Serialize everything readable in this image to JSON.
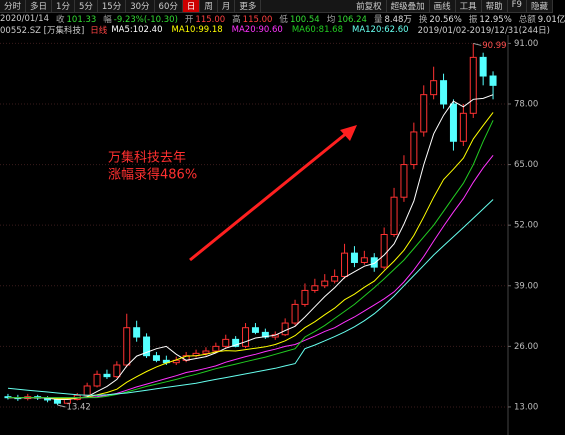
{
  "toolbar": {
    "left": [
      "分时",
      "多日",
      "1分",
      "5分",
      "15分",
      "30分",
      "60分",
      "日",
      "周",
      "月",
      "更多"
    ],
    "right": [
      "前复权",
      "超级叠加",
      "画线",
      "工具",
      "帮助",
      "F9",
      "隐藏"
    ]
  },
  "info_bar": {
    "date": "2020/01/14",
    "items": [
      {
        "label": "收",
        "value": "101.33",
        "color": "#33dd33"
      },
      {
        "label": "幅",
        "value": "-9.23%(-10.30)",
        "color": "#33dd33"
      },
      {
        "label": "开",
        "value": "115.00",
        "color": "#ff4040"
      },
      {
        "label": "高",
        "value": "115.00",
        "color": "#ff4040"
      },
      {
        "label": "低",
        "value": "100.54",
        "color": "#33dd33"
      },
      {
        "label": "均",
        "value": "106.24",
        "color": "#33dd33"
      },
      {
        "label": "量",
        "value": "8.48万",
        "color": "#dddddd"
      },
      {
        "label": "换",
        "value": "20.56%",
        "color": "#dddddd"
      },
      {
        "label": "振",
        "value": "12.95%",
        "color": "#dddddd"
      },
      {
        "label": "总额",
        "value": "9.01亿",
        "color": "#dddddd"
      }
    ]
  },
  "chart_data": {
    "type": "candlestick",
    "code": "00552.SZ [万集科技]",
    "period": "日线",
    "range": "2019/01/02-2019/12/31(244日)",
    "annotations": [
      "万集科技去年",
      "涨幅录得486%"
    ],
    "up_color": "#ff3232",
    "down_color": "#54ffff",
    "grid": true,
    "ylim": [
      10.2,
      92.8
    ],
    "yticks": [
      {
        "value": 91,
        "label": "91.00"
      },
      {
        "value": 78,
        "label": "78.00"
      },
      {
        "value": 65,
        "label": "65.00"
      },
      {
        "value": 52,
        "label": "52.00"
      },
      {
        "value": 39,
        "label": "39.00"
      },
      {
        "value": 26,
        "label": "26.00"
      },
      {
        "value": 13,
        "label": "13.00"
      }
    ],
    "open": [
      15.2,
      15.0,
      14.8,
      15.2,
      14.9,
      14.5,
      13.8,
      14.6,
      15.5,
      17.5,
      20.0,
      19.5,
      22,
      30,
      28,
      24,
      23,
      22.5,
      23,
      24,
      24.5,
      25,
      26,
      27.5,
      26,
      30,
      29,
      28,
      28.5,
      31,
      35,
      38,
      39,
      40,
      41,
      46,
      44,
      45,
      43,
      50,
      58,
      65,
      72,
      80,
      83,
      78,
      70,
      76,
      88,
      84
    ],
    "high": [
      15.8,
      15.6,
      15.8,
      15.6,
      15.3,
      14.9,
      14.9,
      16.0,
      18.2,
      20.8,
      21.0,
      22.8,
      33.0,
      31.5,
      28.8,
      24.8,
      24.0,
      23.8,
      24.8,
      25.3,
      25.8,
      26.8,
      28.5,
      28.2,
      31.0,
      31.0,
      29.8,
      29.2,
      32.0,
      36.0,
      39.5,
      40.5,
      41.5,
      42.5,
      48.0,
      47.5,
      46.5,
      46.0,
      51.5,
      60.0,
      67.0,
      74.0,
      82.0,
      86.0,
      84.5,
      79.0,
      78.0,
      90.99,
      89.0,
      85.0
    ],
    "low": [
      14.6,
      14.3,
      14.4,
      14.5,
      14.0,
      13.42,
      13.6,
      14.4,
      15.2,
      17.2,
      19.0,
      19.2,
      21.5,
      27.0,
      23.5,
      22.6,
      22.0,
      22.0,
      22.6,
      23.6,
      24.0,
      24.6,
      25.6,
      25.8,
      25.6,
      28.6,
      27.6,
      27.4,
      28.2,
      30.5,
      34.5,
      37.5,
      38.5,
      39.5,
      40.5,
      43.0,
      43.5,
      42.0,
      42.5,
      49.5,
      57.0,
      64.0,
      71.0,
      79.0,
      77.0,
      68.0,
      69.0,
      75.0,
      82.0,
      79.0
    ],
    "close": [
      15.0,
      14.8,
      15.2,
      14.9,
      14.5,
      13.8,
      14.6,
      15.5,
      17.5,
      20.0,
      19.5,
      22,
      30,
      28,
      24,
      23,
      22.5,
      23,
      24,
      24.5,
      25,
      26,
      27.5,
      26,
      30,
      29,
      28,
      28.5,
      31,
      35,
      38,
      39,
      40,
      41,
      46,
      44,
      45,
      43,
      50,
      58,
      65,
      72,
      80,
      83,
      78,
      70,
      76,
      88,
      84,
      82
    ],
    "series": [
      {
        "name": "MA5:102.40",
        "color": "#ffffff",
        "values": [
          15,
          15,
          15,
          15,
          14.9,
          14.6,
          14.6,
          14.9,
          15.2,
          16.3,
          17.4,
          18.9,
          21.8,
          23.9,
          24.7,
          25.5,
          26,
          24.3,
          23,
          23.4,
          23.8,
          24.6,
          25.6,
          26.3,
          27,
          27.8,
          28.1,
          28.4,
          29.4,
          30.3,
          32.3,
          34.5,
          36.7,
          38.6,
          40.8,
          42,
          43.2,
          43.8,
          45.6,
          48,
          52.2,
          57.2,
          65,
          71.6,
          75.6,
          78.6,
          77.4,
          79,
          79.2,
          80
        ]
      },
      {
        "name": "MA10:99.18",
        "color": "#ffff00",
        "values": [
          15,
          15,
          15,
          15,
          15,
          14.8,
          14.8,
          14.9,
          15.1,
          15.6,
          16.1,
          16.8,
          18.3,
          19.5,
          20.6,
          21.6,
          22.4,
          23.1,
          23.9,
          24,
          24.3,
          24.8,
          25.1,
          25,
          25.3,
          25.6,
          25.9,
          26.4,
          27.2,
          28.3,
          30,
          31.3,
          32.8,
          34.2,
          36,
          37.2,
          38.7,
          40,
          42.2,
          44.3,
          46.6,
          49.8,
          53.8,
          58,
          61.8,
          64,
          66.4,
          70.5,
          73.4,
          76.2
        ]
      },
      {
        "name": "MA20:90.60",
        "color": "#ff33ff",
        "values": [
          15,
          15,
          15,
          15,
          15,
          15,
          15,
          15,
          15,
          15.2,
          15.5,
          15.9,
          16.6,
          17.3,
          17.9,
          18.5,
          19.1,
          19.7,
          20.4,
          20.8,
          21.3,
          21.8,
          22.6,
          23.2,
          23.8,
          24.3,
          24.9,
          25.4,
          26,
          26.4,
          27.3,
          28.2,
          29.2,
          30,
          31.2,
          32.3,
          33.6,
          34.9,
          36.2,
          37.7,
          39.8,
          42.4,
          45.3,
          48.6,
          51.8,
          54.8,
          57.7,
          61.2,
          64.3,
          67
        ]
      },
      {
        "name": "MA60:81.68",
        "color": "#22cc22",
        "values": [
          15,
          15,
          15,
          15,
          15,
          15,
          15,
          15,
          15,
          15,
          15.3,
          15.7,
          16.2,
          16.8,
          17.4,
          17.9,
          18.4,
          18.9,
          19.5,
          20,
          20.6,
          21.2,
          21.7,
          22.2,
          22.7,
          23.2,
          23.7,
          24.3,
          24.9,
          25.5,
          28,
          29.2,
          30.5,
          32,
          33.5,
          35,
          36.8,
          38.6,
          40.5,
          42.5,
          44.5,
          47,
          49.5,
          52,
          55,
          58,
          61,
          65,
          70,
          74.5
        ]
      },
      {
        "name": "MA120:62.60",
        "color": "#66ffee",
        "values": [
          17,
          16.8,
          16.6,
          16.4,
          16.2,
          16,
          15.8,
          15.6,
          15.5,
          15.5,
          15.6,
          15.8,
          16,
          16.3,
          16.6,
          16.9,
          17.2,
          17.5,
          17.8,
          18.1,
          18.5,
          18.9,
          19.3,
          19.7,
          20.1,
          20.5,
          20.9,
          21.3,
          21.8,
          22.3,
          25.5,
          26.3,
          27.2,
          28.1,
          29.1,
          30.2,
          31.5,
          33,
          34.8,
          36.8,
          39,
          41.2,
          43.4,
          45.6,
          47.6,
          49.5,
          51.5,
          53.5,
          55.5,
          57.5
        ]
      }
    ]
  }
}
